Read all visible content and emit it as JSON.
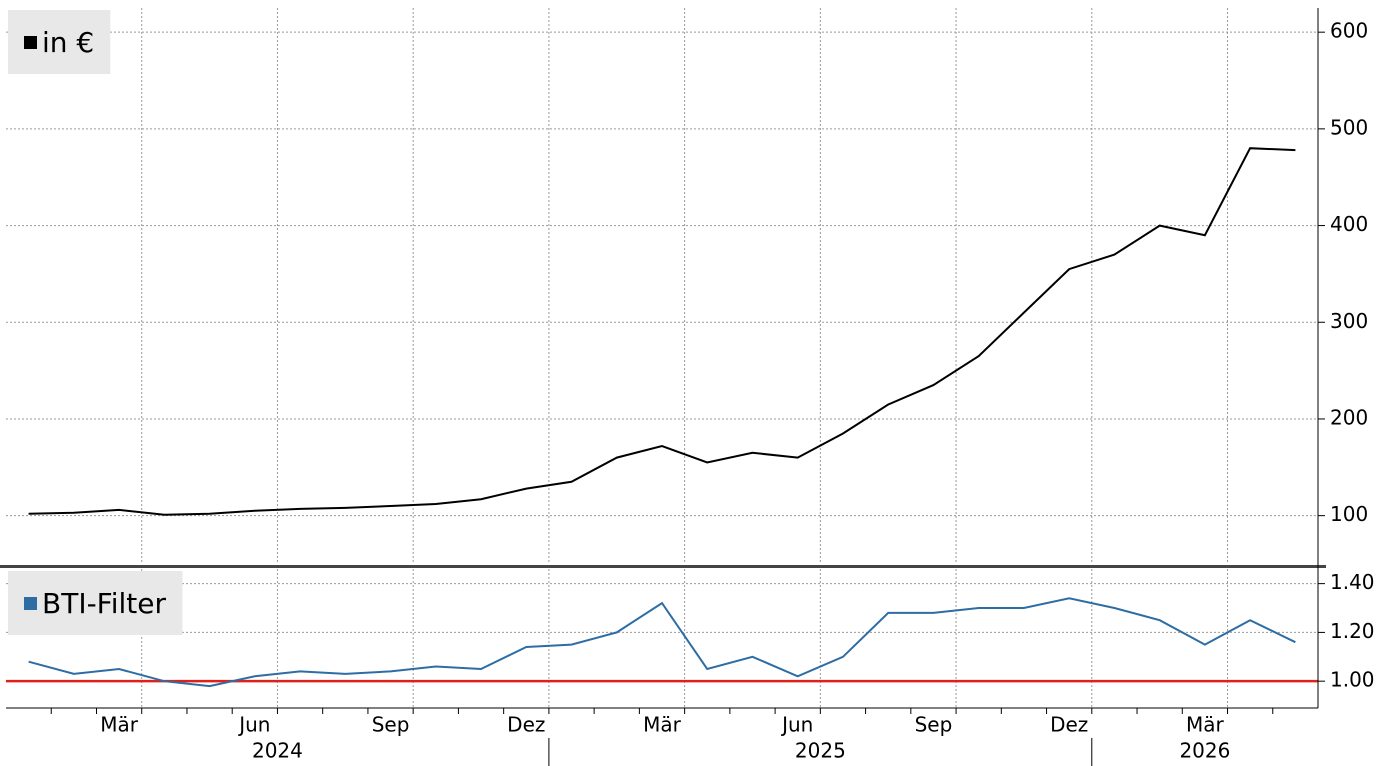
{
  "chart_data": [
    {
      "type": "line",
      "legend": "in €",
      "x": [
        "2024-01",
        "2024-02",
        "2024-03",
        "2024-04",
        "2024-05",
        "2024-06",
        "2024-07",
        "2024-08",
        "2024-09",
        "2024-10",
        "2024-11",
        "2024-12",
        "2025-01",
        "2025-02",
        "2025-03",
        "2025-04",
        "2025-05",
        "2025-06",
        "2025-07",
        "2025-08",
        "2025-09",
        "2025-10",
        "2025-11",
        "2025-12",
        "2026-01",
        "2026-02",
        "2026-03",
        "2026-04",
        "2026-05"
      ],
      "series": [
        {
          "name": "in €",
          "color": "#000000",
          "values": [
            102,
            103,
            106,
            101,
            102,
            105,
            107,
            108,
            110,
            112,
            117,
            128,
            135,
            160,
            172,
            155,
            165,
            160,
            185,
            215,
            235,
            265,
            310,
            355,
            370,
            400,
            390,
            480,
            478
          ]
        }
      ],
      "xlim": [
        "2024-01",
        "2026-06"
      ],
      "ylim": [
        50,
        625
      ],
      "yticks": [
        100,
        200,
        300,
        400,
        500,
        600
      ],
      "grid": true
    },
    {
      "type": "line",
      "legend": "BTI-Filter",
      "x": [
        "2024-01",
        "2024-02",
        "2024-03",
        "2024-04",
        "2024-05",
        "2024-06",
        "2024-07",
        "2024-08",
        "2024-09",
        "2024-10",
        "2024-11",
        "2024-12",
        "2025-01",
        "2025-02",
        "2025-03",
        "2025-04",
        "2025-05",
        "2025-06",
        "2025-07",
        "2025-08",
        "2025-09",
        "2025-10",
        "2025-11",
        "2025-12",
        "2026-01",
        "2026-02",
        "2026-03",
        "2026-04",
        "2026-05"
      ],
      "series": [
        {
          "name": "BTI-Filter",
          "color": "#2e6da4",
          "values": [
            1.08,
            1.03,
            1.05,
            1.0,
            0.98,
            1.02,
            1.04,
            1.03,
            1.04,
            1.06,
            1.05,
            1.14,
            1.15,
            1.2,
            1.32,
            1.05,
            1.1,
            1.02,
            1.1,
            1.28,
            1.28,
            1.3,
            1.3,
            1.34,
            1.3,
            1.25,
            1.15,
            1.25,
            1.16
          ]
        }
      ],
      "xlim": [
        "2024-01",
        "2026-06"
      ],
      "ylim": [
        0.89,
        1.46
      ],
      "yticks": [
        {
          "value": 1,
          "label": "1.00"
        },
        {
          "value": 1.2,
          "label": "1.20"
        },
        {
          "value": 1.4,
          "label": "1.40"
        }
      ],
      "grid": true,
      "reference_line": {
        "value": 1,
        "color": "#e0201b"
      },
      "xticks": [
        {
          "value": "2024-03",
          "label": "Mär"
        },
        {
          "value": "2024-06",
          "label": "Jun"
        },
        {
          "value": "2024-09",
          "label": "Sep"
        },
        {
          "value": "2024-12",
          "label": "Dez"
        },
        {
          "value": "2025-03",
          "label": "Mär"
        },
        {
          "value": "2025-06",
          "label": "Jun"
        },
        {
          "value": "2025-09",
          "label": "Sep"
        },
        {
          "value": "2025-12",
          "label": "Dez"
        },
        {
          "value": "2026-03",
          "label": "Mär"
        }
      ],
      "x_years": [
        "2024",
        "2025",
        "2026"
      ]
    }
  ]
}
